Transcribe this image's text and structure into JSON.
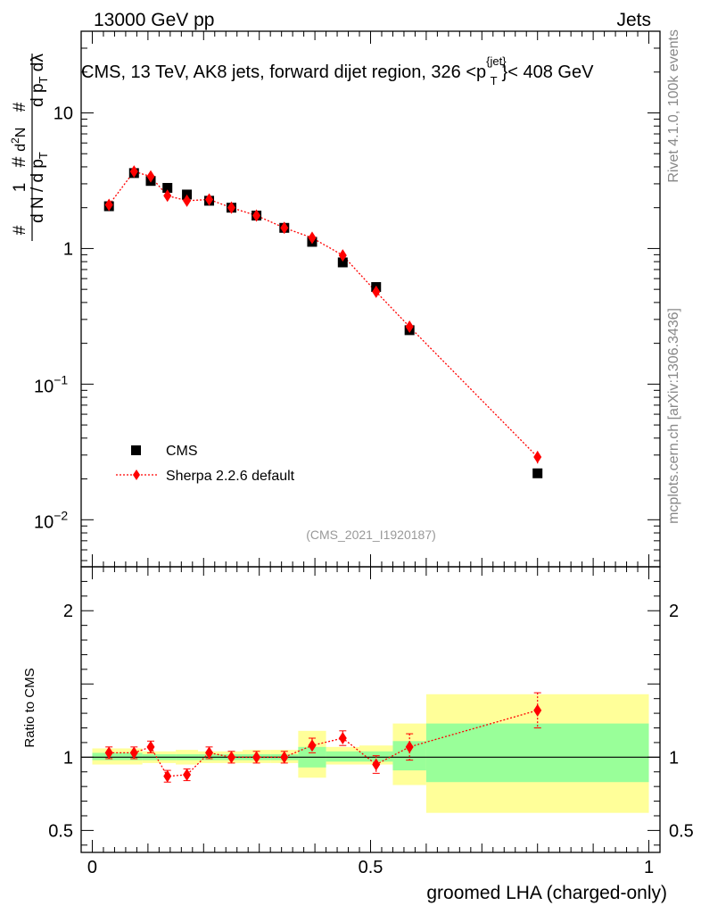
{
  "header": {
    "energy_label": "13000 GeV pp",
    "category_label": "Jets"
  },
  "side_labels": {
    "rivet": "Rivet 4.1.0,  100k events",
    "site": "mcplots.cern.ch [arXiv:1306.3436]"
  },
  "chart_data": [
    {
      "type": "scatter",
      "title": "CMS, 13 TeV, AK8 jets, forward dijet region, 326 <p",
      "title_sup": "{jet}",
      "title_sub": "T",
      "title_end": "}< 408 GeV",
      "analysis_id": "(CMS_2021_I1920187)",
      "xlabel": "groomed LHA (charged-only)",
      "ylabel": "1/(dN/dp_T) d²N/(dp_T dλ)",
      "y_scale": "log",
      "xlim": [
        -0.02,
        1.02
      ],
      "ylim": [
        0.0045,
        40
      ],
      "y_ticks": [
        {
          "value": 10,
          "label": "10"
        },
        {
          "value": 1,
          "label": "1"
        },
        {
          "value": 0.1,
          "base": "10",
          "exp": "−1"
        },
        {
          "value": 0.01,
          "base": "10",
          "exp": "−2"
        }
      ],
      "legend": {
        "position": "bottom-left",
        "entries": [
          {
            "label": "CMS",
            "marker": "square",
            "color": "#000000"
          },
          {
            "label": "Sherpa 2.2.6 default",
            "marker": "diamond",
            "color": "#ff0000",
            "line": "dotted"
          }
        ]
      },
      "series": [
        {
          "name": "CMS",
          "x": [
            0.03,
            0.075,
            0.105,
            0.135,
            0.17,
            0.21,
            0.25,
            0.295,
            0.345,
            0.395,
            0.45,
            0.51,
            0.57,
            0.8
          ],
          "y": [
            2.05,
            3.6,
            3.15,
            2.8,
            2.5,
            2.25,
            2.0,
            1.75,
            1.42,
            1.12,
            0.79,
            0.52,
            0.25,
            0.022
          ]
        },
        {
          "name": "Sherpa 2.2.6 default",
          "x": [
            0.03,
            0.075,
            0.105,
            0.135,
            0.17,
            0.21,
            0.25,
            0.295,
            0.345,
            0.395,
            0.45,
            0.51,
            0.57,
            0.8
          ],
          "y": [
            2.1,
            3.7,
            3.4,
            2.45,
            2.25,
            2.3,
            2.0,
            1.75,
            1.42,
            1.2,
            0.89,
            0.48,
            0.265,
            0.029
          ],
          "yerr": [
            0.08,
            0.12,
            0.12,
            0.1,
            0.08,
            0.08,
            0.07,
            0.06,
            0.05,
            0.05,
            0.04,
            0.03,
            0.02,
            0.003
          ]
        }
      ]
    },
    {
      "type": "scatter",
      "ylabel": "Ratio to CMS",
      "xlabel": "groomed LHA (charged-only)",
      "xlim": [
        -0.02,
        1.02
      ],
      "ylim": [
        0.35,
        2.3
      ],
      "y_ticks": [
        {
          "value": 2,
          "label": "2"
        },
        {
          "value": 1,
          "label": "1"
        },
        {
          "value": 0.5,
          "label": "0.5"
        }
      ],
      "x_ticks": [
        {
          "value": 0,
          "label": "0"
        },
        {
          "value": 0.5,
          "label": "0.5"
        },
        {
          "value": 1,
          "label": "1"
        }
      ],
      "bands": {
        "inner_color": "#99ff99",
        "outer_color": "#ffff99",
        "bins": [
          {
            "x0": 0.0,
            "x1": 0.09,
            "inner": [
              0.98,
              1.03
            ],
            "outer": [
              0.95,
              1.06
            ]
          },
          {
            "x0": 0.09,
            "x1": 0.15,
            "inner": [
              0.98,
              1.02
            ],
            "outer": [
              0.96,
              1.04
            ]
          },
          {
            "x0": 0.15,
            "x1": 0.19,
            "inner": [
              0.98,
              1.02
            ],
            "outer": [
              0.95,
              1.05
            ]
          },
          {
            "x0": 0.19,
            "x1": 0.23,
            "inner": [
              0.98,
              1.02
            ],
            "outer": [
              0.96,
              1.04
            ]
          },
          {
            "x0": 0.23,
            "x1": 0.27,
            "inner": [
              0.98,
              1.02
            ],
            "outer": [
              0.96,
              1.04
            ]
          },
          {
            "x0": 0.27,
            "x1": 0.32,
            "inner": [
              0.98,
              1.02
            ],
            "outer": [
              0.96,
              1.05
            ]
          },
          {
            "x0": 0.32,
            "x1": 0.37,
            "inner": [
              0.98,
              1.02
            ],
            "outer": [
              0.96,
              1.05
            ]
          },
          {
            "x0": 0.37,
            "x1": 0.42,
            "inner": [
              0.93,
              1.07
            ],
            "outer": [
              0.86,
              1.18
            ]
          },
          {
            "x0": 0.42,
            "x1": 0.48,
            "inner": [
              0.97,
              1.04
            ],
            "outer": [
              0.95,
              1.07
            ]
          },
          {
            "x0": 0.48,
            "x1": 0.54,
            "inner": [
              0.97,
              1.04
            ],
            "outer": [
              0.95,
              1.08
            ]
          },
          {
            "x0": 0.54,
            "x1": 0.6,
            "inner": [
              0.91,
              1.11
            ],
            "outer": [
              0.81,
              1.23
            ]
          },
          {
            "x0": 0.6,
            "x1": 1.0,
            "inner": [
              0.83,
              1.23
            ],
            "outer": [
              0.62,
              1.43
            ]
          }
        ]
      },
      "series": [
        {
          "name": "Sherpa 2.2.6 default",
          "x": [
            0.03,
            0.075,
            0.105,
            0.135,
            0.17,
            0.21,
            0.25,
            0.295,
            0.345,
            0.395,
            0.45,
            0.51,
            0.57,
            0.8
          ],
          "y": [
            1.03,
            1.03,
            1.07,
            0.87,
            0.88,
            1.03,
            1.0,
            1.0,
            1.0,
            1.08,
            1.13,
            0.95,
            1.07,
            1.32
          ],
          "yerr": [
            0.04,
            0.04,
            0.04,
            0.04,
            0.04,
            0.04,
            0.04,
            0.04,
            0.04,
            0.05,
            0.05,
            0.06,
            0.09,
            0.12
          ]
        }
      ]
    }
  ]
}
